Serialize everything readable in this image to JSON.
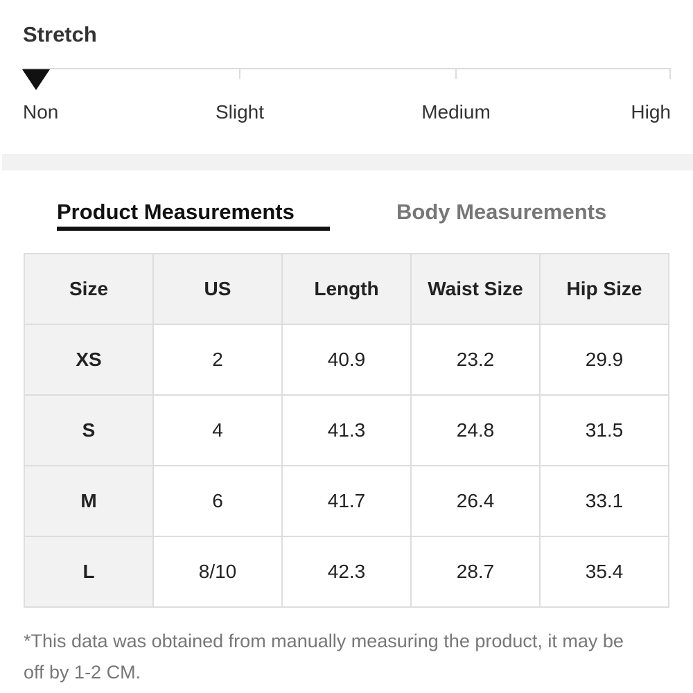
{
  "stretch": {
    "title": "Stretch",
    "levels": [
      "Non",
      "Slight",
      "Medium",
      "High"
    ]
  },
  "tabs": [
    "Product Measurements",
    "Body Measurements"
  ],
  "table": {
    "header": [
      "Size",
      "US",
      "Length",
      "Waist Size",
      "Hip Size"
    ],
    "rows": [
      [
        "XS",
        2,
        40.9,
        23.2,
        29.9
      ],
      [
        "S",
        4,
        41.3,
        24.8,
        31.5
      ],
      [
        "M",
        6,
        41.7,
        26.4,
        33.1
      ],
      [
        "L",
        "8/10",
        42.3,
        28.7,
        35.4
      ]
    ]
  },
  "note": "*This data was obtained from manually measuring the product, it may be off by 1-2 CM."
}
